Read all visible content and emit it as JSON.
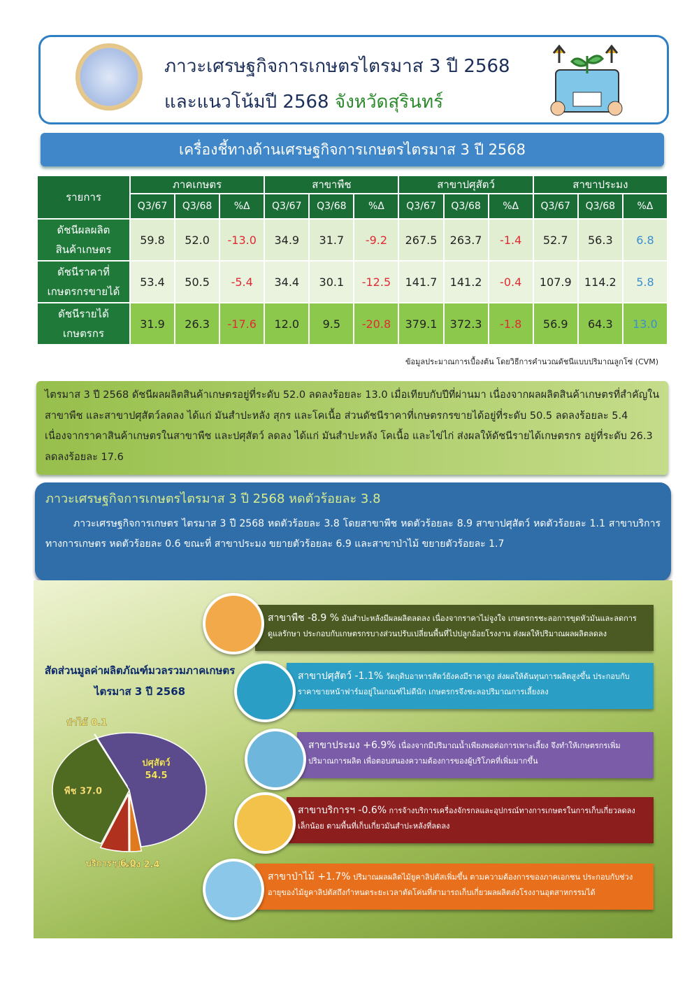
{
  "header": {
    "title": "ภาวะเศรษฐกิจการเกษตรไตรมาส 3 ปี 2568",
    "subtitle": "และแนวโน้มปี 2568",
    "province": "จังหวัดสุรินทร์"
  },
  "banner": "เครื่องชี้ทางด้านเศรษฐกิจการเกษตรไตรมาส 3 ปี 2568",
  "table": {
    "item_header": "รายการ",
    "groups": [
      "ภาคเกษตร",
      "สาขาพืช",
      "สาขาปศุสัตว์",
      "สาขาประมง"
    ],
    "subcolumns": [
      "Q3/67",
      "Q3/68",
      "%Δ"
    ],
    "rows": [
      {
        "label": [
          "ดัชนีผลผลิต",
          "สินค้าเกษตร"
        ],
        "cells": [
          "59.8",
          "52.0",
          "-13.0",
          "34.9",
          "31.7",
          "-9.2",
          "267.5",
          "263.7",
          "-1.4",
          "52.7",
          "56.3",
          "6.8"
        ]
      },
      {
        "label": [
          "ดัชนีราคาที่",
          "เกษตรกรขายได้"
        ],
        "cells": [
          "53.4",
          "50.5",
          "-5.4",
          "34.4",
          "30.1",
          "-12.5",
          "141.7",
          "141.2",
          "-0.4",
          "107.9",
          "114.2",
          "5.8"
        ]
      },
      {
        "label": [
          "ดัชนีรายได้",
          "เกษตรกร"
        ],
        "cells": [
          "31.9",
          "26.3",
          "-17.6",
          "12.0",
          "9.5",
          "-20.8",
          "379.1",
          "372.3",
          "-1.8",
          "56.9",
          "64.3",
          "13.0"
        ]
      }
    ]
  },
  "note": "ข้อมูลประมาณการเบื้องต้น โดยวิธีการคำนวณดัชนีแบบปริมาณลูกโซ่ (CVM)",
  "summary": "ไตรมาส 3 ปี 2568 ดัชนีผลผลิตสินค้าเกษตรอยู่ที่ระดับ 52.0 ลดลงร้อยละ 13.0 เมื่อเทียบกับปีที่ผ่านมา เนื่องจากผลผลิตสินค้าเกษตรที่สำคัญในสาขาพืช และสาขาปศุสัตว์ลดลง ได้แก่ มันสำปะหลัง สุกร และโคเนื้อ ส่วนดัชนีราคาที่เกษตรกรขายได้อยู่ที่ระดับ 50.5 ลดลงร้อยละ 5.4 เนื่องจากราคาสินค้าเกษตรในสาขาพืช และปศุสัตว์ ลดลง ได้แก่ มันสำปะหลัง โคเนื้อ และไข่ไก่ ส่งผลให้ดัชนีรายได้เกษตรกร อยู่ที่ระดับ 26.3 ลดลงร้อยละ 17.6",
  "overview": {
    "title": "ภาวะเศรษฐกิจการเกษตรไตรมาส 3 ปี 2568 หดตัวร้อยละ 3.8",
    "text": "ภาวะเศรษฐกิจการเกษตร ไตรมาส 3 ปี 2568 หดตัวร้อยละ 3.8 โดยสาขาพืช หดตัวร้อยละ 8.9 สาขาปศุสัตว์ หดตัวร้อยละ 1.1 สาขาบริการทางการเกษตร หดตัวร้อยละ 0.6 ขณะที่ สาขาประมง ขยายตัวร้อยละ 6.9 และสาขาป่าไม้ ขยายตัวร้อยละ 1.7"
  },
  "branches": [
    {
      "name": "สาขาพืช -8.9 %",
      "text": "มันสำปะหลังมีผลผลิตลดลง เนื่องจากราคาไม่จูงใจ เกษตรกรชะลอการขุดหัวมันและลดการดูแลรักษา ประกอบกับเกษตรกรบางส่วนปรับเปลี่ยนพื้นที่ไปปลูกอ้อยโรงงาน ส่งผลให้ปริมาณผลผลิตลดลง"
    },
    {
      "name": "สาขาปศุสัตว์ -1.1%",
      "text": "วัตถุดิบอาหารสัตว์ยังคงมีราคาสูง ส่งผลให้ต้นทุนการผลิตสูงขึ้น ประกอบกับราคาขายหน้าฟาร์มอยู่ในเกณฑ์ไม่ดีนัก เกษตรกรจึงชะลอปริมาณการเลี้ยงลง"
    },
    {
      "name": "สาขาประมง +6.9%",
      "text": "เนื่องจากมีปริมาณน้ำเพียงพอต่อการเพาะเลี้ยง จึงทำให้เกษตรกรเพิ่มปริมาณการผลิต เพื่อตอบสนองความต้องการของผู้บริโภคที่เพิ่มมากขึ้น"
    },
    {
      "name": "สาขาบริการฯ -0.6%",
      "text": "การจ้างบริการเครื่องจักรกลและอุปกรณ์ทางการเกษตรในการเก็บเกี่ยวลดลงเล็กน้อย ตามพื้นที่เก็บเกี่ยวมันสำปะหลังที่ลดลง"
    },
    {
      "name": "สาขาป่าไม้ +1.7%",
      "text": "ปริมาณผลผลิตไม้ยูคาลิปตัสเพิ่มขึ้น ตามความต้องการของภาคเอกชน ประกอบกับช่วงอายุของไม้ยูคาลิปตัสถึงกำหนดระยะเวลาตัดโค่นที่สามารถเก็บเกี่ยวผลผลิตส่งโรงงานอุตสาหกรรมได้"
    }
  ],
  "chart_data": {
    "type": "pie",
    "title": "สัดส่วนมูลค่าผลิตภัณฑ์มวลรวมภาคเกษตร",
    "subtitle": "ไตรมาส 3 ปี 2568",
    "categories": [
      "ปศุสัตว์",
      "ประมง",
      "บริการฯ",
      "พืช",
      "ป่าไม้"
    ],
    "values": [
      54.5,
      2.4,
      6.0,
      37.0,
      0.1
    ],
    "value_labels": [
      "54.5",
      "2.4",
      "6.0",
      "37.0",
      "0.1"
    ],
    "colors": [
      "#5c4b8c",
      "#e07a1f",
      "#b0321e",
      "#4f6b21",
      "#8fb04a"
    ]
  }
}
